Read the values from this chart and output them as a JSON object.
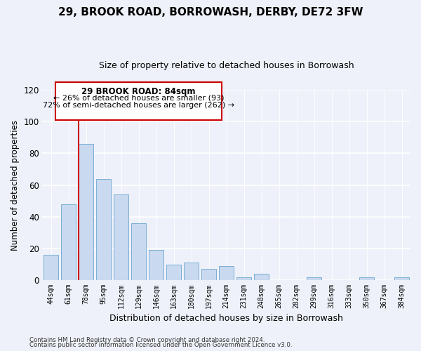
{
  "title": "29, BROOK ROAD, BORROWASH, DERBY, DE72 3FW",
  "subtitle": "Size of property relative to detached houses in Borrowash",
  "xlabel": "Distribution of detached houses by size in Borrowash",
  "ylabel": "Number of detached properties",
  "categories": [
    "44sqm",
    "61sqm",
    "78sqm",
    "95sqm",
    "112sqm",
    "129sqm",
    "146sqm",
    "163sqm",
    "180sqm",
    "197sqm",
    "214sqm",
    "231sqm",
    "248sqm",
    "265sqm",
    "282sqm",
    "299sqm",
    "316sqm",
    "333sqm",
    "350sqm",
    "367sqm",
    "384sqm"
  ],
  "values": [
    16,
    48,
    86,
    64,
    54,
    36,
    19,
    10,
    11,
    7,
    9,
    2,
    4,
    0,
    0,
    2,
    0,
    0,
    2,
    0,
    2
  ],
  "bar_color": "#c9d9ef",
  "bar_edge_color": "#7bafd4",
  "highlight_index": 2,
  "highlight_line_color": "#cc0000",
  "ylim": [
    0,
    120
  ],
  "yticks": [
    0,
    20,
    40,
    60,
    80,
    100,
    120
  ],
  "annotation_title": "29 BROOK ROAD: 84sqm",
  "annotation_line1": "← 26% of detached houses are smaller (93)",
  "annotation_line2": "72% of semi-detached houses are larger (262) →",
  "annotation_box_color": "#ffffff",
  "annotation_box_edge": "#cc0000",
  "footer_line1": "Contains HM Land Registry data © Crown copyright and database right 2024.",
  "footer_line2": "Contains public sector information licensed under the Open Government Licence v3.0.",
  "background_color": "#eef1f9",
  "plot_background": "#eef1f9",
  "grid_color": "#ffffff",
  "title_fontsize": 11,
  "subtitle_fontsize": 9
}
